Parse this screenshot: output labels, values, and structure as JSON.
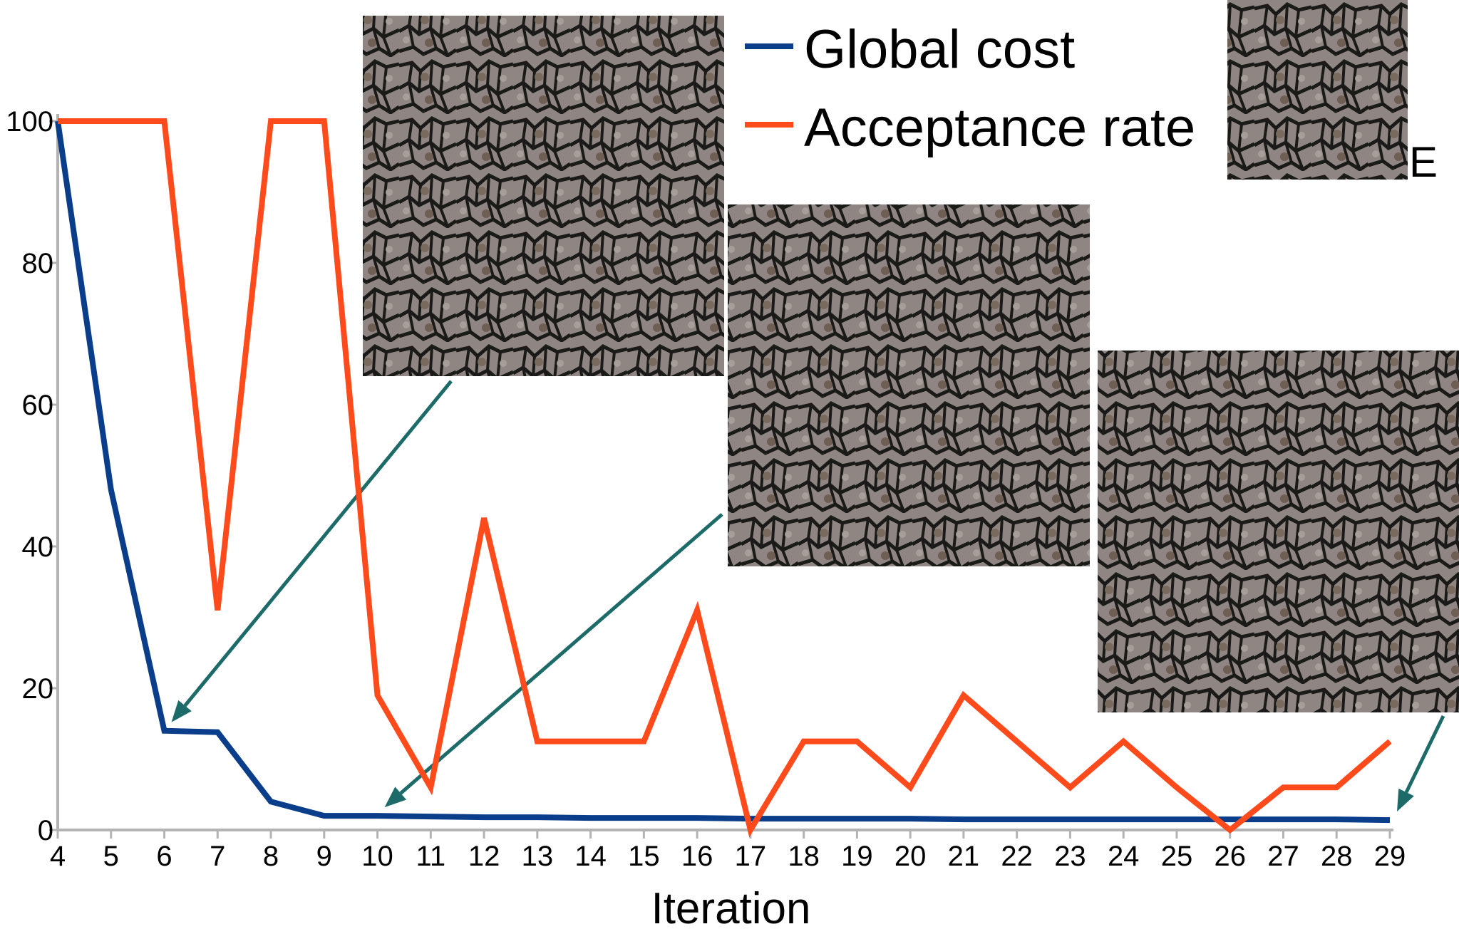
{
  "chart_data": {
    "type": "line",
    "xlabel": "Iteration",
    "ylabel": "",
    "ylim": [
      0,
      100
    ],
    "yticks": [
      "0",
      "20",
      "40",
      "60",
      "80",
      "100"
    ],
    "x": [
      4,
      5,
      6,
      7,
      8,
      9,
      10,
      11,
      12,
      13,
      14,
      15,
      16,
      17,
      18,
      19,
      20,
      21,
      22,
      23,
      24,
      25,
      26,
      27,
      28,
      29
    ],
    "series": [
      {
        "name": "Global cost",
        "color": "#0a3d8a",
        "values": [
          100,
          48,
          14,
          13.8,
          4,
          2,
          2,
          1.9,
          1.8,
          1.8,
          1.7,
          1.7,
          1.7,
          1.6,
          1.6,
          1.6,
          1.6,
          1.5,
          1.5,
          1.5,
          1.5,
          1.5,
          1.5,
          1.5,
          1.5,
          1.4
        ]
      },
      {
        "name": "Acceptance rate",
        "color": "#ff4a1c",
        "values": [
          100,
          100,
          100,
          31,
          100,
          100,
          19,
          6,
          44,
          12.5,
          12.5,
          12.5,
          31,
          0,
          12.5,
          12.5,
          6,
          19,
          12.5,
          6,
          12.5,
          6,
          0,
          6,
          6,
          12.5
        ]
      }
    ],
    "legend": {
      "placement": "top-right"
    },
    "annotations": [
      {
        "type": "texture-inset",
        "points_to_iteration": 6
      },
      {
        "type": "texture-inset",
        "points_to_iteration": 10
      },
      {
        "type": "texture-inset",
        "points_to_iteration": 29
      },
      {
        "type": "texture-inset",
        "label": "E"
      }
    ],
    "arrow_color": "#1d6b68"
  }
}
